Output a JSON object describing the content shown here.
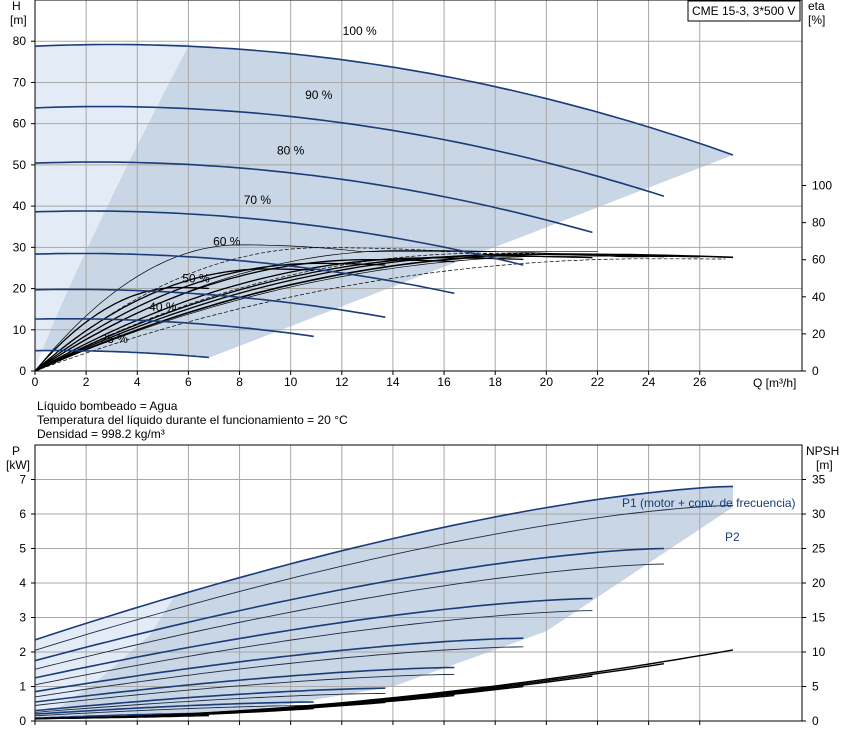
{
  "model_label": "CME 15-3, 3*500 V",
  "conditions": [
    "Líquido bombeado = Agua",
    "Temperatura del líquido durante el funcionamiento = 20 °C",
    "Densidad = 998.2 kg/m³"
  ],
  "colors": {
    "curve_blue": "#1a3c78",
    "band_fill": "#c8d6e5",
    "low_band_fill": "#e3ecf6",
    "grid": "#a8a8a8"
  },
  "chart_data": [
    {
      "type": "line",
      "xlabel": "Q [m³/h]",
      "ylabel_left": [
        "H",
        "[m]"
      ],
      "ylabel_right": [
        "eta",
        "[%]"
      ],
      "xlim": [
        0,
        30
      ],
      "ylim": [
        0,
        90
      ],
      "xticks": [
        0,
        2,
        4,
        6,
        8,
        10,
        12,
        14,
        16,
        18,
        20,
        22,
        24,
        26
      ],
      "yticks": [
        0,
        10,
        20,
        30,
        40,
        50,
        60,
        70,
        80
      ],
      "right_ticks": [
        0,
        20,
        40,
        60,
        80,
        100
      ],
      "right_lim": [
        0,
        200
      ],
      "grid": true,
      "head_curves": [
        {
          "speed": "100 %",
          "q_max": 27.3,
          "points": [
            [
              0,
              78.8
            ],
            [
              4,
              79.2
            ],
            [
              6,
              79.5
            ],
            [
              8,
              79.7
            ],
            [
              10,
              79.6
            ],
            [
              12,
              78.9
            ],
            [
              14,
              77.5
            ],
            [
              16,
              75.3
            ],
            [
              18,
              72.2
            ],
            [
              20,
              68.0
            ],
            [
              22,
              62.6
            ],
            [
              24,
              55.8
            ],
            [
              26,
              47.5
            ],
            [
              27.3,
              52.8
            ]
          ],
          "label_q": 12.7,
          "label_h": 81.5
        },
        {
          "speed": "90 %",
          "q_max": 24.6,
          "label_q": 11.1,
          "label_h": 66
        },
        {
          "speed": "80 %",
          "q_max": 21.8,
          "label_q": 10.0,
          "label_h": 52.5
        },
        {
          "speed": "70 %",
          "q_max": 19.1,
          "label_q": 8.7,
          "label_h": 40.5
        },
        {
          "speed": "60 %",
          "q_max": 16.4,
          "label_q": 7.5,
          "label_h": 30.5
        },
        {
          "speed": "50 %",
          "q_max": 13.7,
          "label_q": 6.3,
          "label_h": 21.5
        },
        {
          "speed": "40 %",
          "q_max": 10.9,
          "label_q": 5.0,
          "label_h": 14.5
        },
        {
          "speed": "25 %",
          "q_max": 6.8,
          "label_q": 3.1,
          "label_h": 6.8
        }
      ],
      "efficiency_curves": [
        {
          "speed": "100 %",
          "peak_eta": 63,
          "q_peak": 20.5,
          "q_max": 27.3
        },
        {
          "speed": "90 %",
          "peak_eta": 63,
          "q_peak": 19.0,
          "q_max": 24.6
        },
        {
          "speed": "80 %",
          "peak_eta": 62,
          "q_peak": 17.5,
          "q_max": 21.8
        },
        {
          "speed": "70 %",
          "peak_eta": 61,
          "q_peak": 15.5,
          "q_max": 19.1
        },
        {
          "speed": "60 %",
          "peak_eta": 60,
          "q_peak": 13.0,
          "q_max": 16.4
        },
        {
          "speed": "50 %",
          "peak_eta": 58,
          "q_peak": 11.0,
          "q_max": 13.7
        },
        {
          "speed": "40 %",
          "peak_eta": 55,
          "q_peak": 9.0,
          "q_max": 10.9
        },
        {
          "speed": "25 %",
          "peak_eta": 45,
          "q_peak": 5.6,
          "q_max": 6.8
        }
      ]
    },
    {
      "type": "line",
      "ylabel_left": [
        "P",
        "[kW]"
      ],
      "ylabel_right": [
        "NPSH",
        "[m]"
      ],
      "xlim": [
        0,
        30
      ],
      "ylim": [
        0,
        8
      ],
      "yticks": [
        0,
        1,
        2,
        3,
        4,
        5,
        6,
        7
      ],
      "right_ticks": [
        0,
        5,
        10,
        15,
        20,
        25,
        30,
        35
      ],
      "right_lim": [
        0,
        40
      ],
      "grid": true,
      "series_labels": {
        "p1": "P1 (motor + conv. de frecuencia)",
        "p2": "P2"
      },
      "p1_curves": [
        {
          "speed": "100 %",
          "q_max": 27.3,
          "p_start": 2.35,
          "p_end": 6.8
        },
        {
          "speed": "90 %",
          "q_max": 24.6,
          "p_start": 1.75,
          "p_end": 5.0
        },
        {
          "speed": "80 %",
          "q_max": 21.8,
          "p_start": 1.25,
          "p_end": 3.55
        },
        {
          "speed": "70 %",
          "q_max": 19.1,
          "p_start": 0.85,
          "p_end": 2.4
        },
        {
          "speed": "60 %",
          "q_max": 16.4,
          "p_start": 0.55,
          "p_end": 1.55
        },
        {
          "speed": "50 %",
          "q_max": 13.7,
          "p_start": 0.3,
          "p_end": 0.95
        },
        {
          "speed": "40 %",
          "q_max": 10.9,
          "p_start": 0.2,
          "p_end": 0.55
        },
        {
          "speed": "25 %",
          "q_max": 6.8,
          "p_start": 0.08,
          "p_end": 0.22
        }
      ],
      "p2_curves": [
        {
          "speed": "100 %",
          "q_max": 27.3,
          "p_start": 2.05,
          "p_end": 6.25
        },
        {
          "speed": "90 %",
          "q_max": 24.6,
          "p_start": 1.5,
          "p_end": 4.55
        },
        {
          "speed": "80 %",
          "q_max": 21.8,
          "p_start": 1.05,
          "p_end": 3.2
        },
        {
          "speed": "70 %",
          "q_max": 19.1,
          "p_start": 0.7,
          "p_end": 2.15
        },
        {
          "speed": "60 %",
          "q_max": 16.4,
          "p_start": 0.45,
          "p_end": 1.35
        },
        {
          "speed": "50 %",
          "q_max": 13.7,
          "p_start": 0.25,
          "p_end": 0.8
        },
        {
          "speed": "40 %",
          "q_max": 10.9,
          "p_start": 0.15,
          "p_end": 0.45
        },
        {
          "speed": "25 %",
          "q_max": 6.8,
          "p_start": 0.05,
          "p_end": 0.15
        }
      ],
      "npsh_curves": [
        {
          "speed": "100 %",
          "q_max": 27.3,
          "npsh_end": 10.3
        },
        {
          "speed": "90 %",
          "q_max": 24.6,
          "npsh_end": 8.3
        },
        {
          "speed": "80 %",
          "q_max": 21.8,
          "npsh_end": 6.5
        },
        {
          "speed": "70 %",
          "q_max": 19.1,
          "npsh_end": 5.0
        },
        {
          "speed": "60 %",
          "q_max": 16.4,
          "npsh_end": 3.7
        },
        {
          "speed": "50 %",
          "q_max": 13.7,
          "npsh_end": 2.7
        },
        {
          "speed": "40 %",
          "q_max": 10.9,
          "npsh_end": 1.8
        },
        {
          "speed": "25 %",
          "q_max": 6.8,
          "npsh_end": 0.8
        }
      ]
    }
  ]
}
